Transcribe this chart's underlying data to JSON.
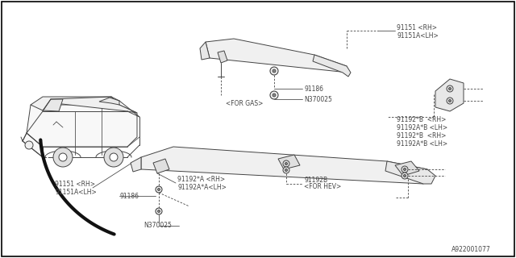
{
  "bg_color": "#ffffff",
  "border_color": "#000000",
  "dc": "#444444",
  "figsize": [
    6.4,
    3.2
  ],
  "dpi": 100,
  "parts": {
    "91151_RH": "91151 <RH>",
    "91151A_LH": "91151A<LH>",
    "91186": "91186",
    "N370025": "N370025",
    "91192B": "91192B",
    "91192_star_B_RH": "91192*B  <RH>",
    "91192A_star_B_LH": "91192A*B <LH>",
    "91192_star_A_RH": "91192*A <RH>",
    "91192A_star_A_LH": "91192A*A<LH>",
    "for_gas": "<FOR GAS>",
    "for_hev": "<FOR HEV>",
    "diagram_id": "A922001077"
  }
}
